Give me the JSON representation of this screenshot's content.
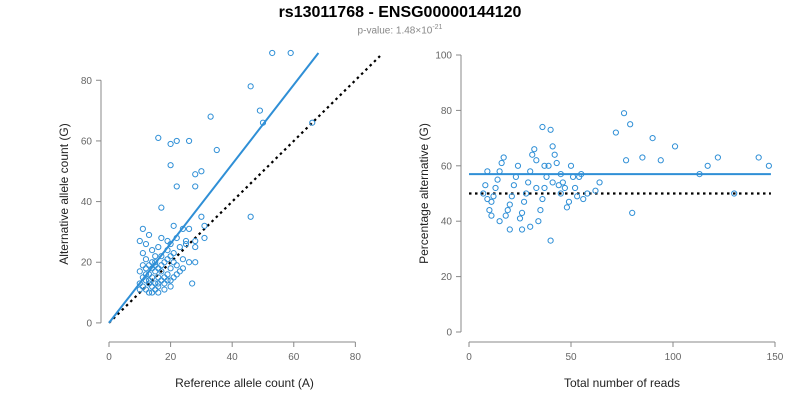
{
  "title": "rs13011768 - ENSG00000144120",
  "subtitle": {
    "prefix": "p-value: 1.48×10",
    "exponent": "-21"
  },
  "colors": {
    "points": "#2f8fd6",
    "fit_line": "#2f8fd6",
    "reference_line": "#000000",
    "axis": "#888888"
  },
  "chart_data": [
    {
      "type": "scatter",
      "id": "left",
      "xlabel": "Reference allele count (A)",
      "ylabel": "Alternative allele count (G)",
      "xlim": [
        0,
        88
      ],
      "ylim": [
        -3,
        88
      ],
      "xticks": [
        0,
        20,
        40,
        60,
        80
      ],
      "yticks": [
        0,
        20,
        40,
        60,
        80
      ],
      "grid": false,
      "fit_line": {
        "style": "solid",
        "x": [
          0,
          68
        ],
        "y": [
          0,
          89
        ]
      },
      "reference_line": {
        "style": "dotted",
        "x": [
          0,
          88
        ],
        "y": [
          0,
          88
        ]
      },
      "points": [
        [
          53,
          89
        ],
        [
          59,
          89
        ],
        [
          33,
          68
        ],
        [
          46,
          78
        ],
        [
          49,
          70
        ],
        [
          50,
          66
        ],
        [
          66,
          66
        ],
        [
          16,
          61
        ],
        [
          26,
          60
        ],
        [
          35,
          57
        ],
        [
          20,
          59
        ],
        [
          22,
          60
        ],
        [
          20,
          52
        ],
        [
          30,
          50
        ],
        [
          28,
          49
        ],
        [
          28,
          45
        ],
        [
          22,
          45
        ],
        [
          17,
          38
        ],
        [
          46,
          35
        ],
        [
          21,
          32
        ],
        [
          31,
          32
        ],
        [
          30,
          35
        ],
        [
          24,
          31
        ],
        [
          26,
          31
        ],
        [
          13,
          29
        ],
        [
          11,
          31
        ],
        [
          22,
          28
        ],
        [
          17,
          28
        ],
        [
          25,
          27
        ],
        [
          28,
          27
        ],
        [
          19,
          27
        ],
        [
          20,
          26
        ],
        [
          10,
          27
        ],
        [
          12,
          26
        ],
        [
          31,
          28
        ],
        [
          16,
          25
        ],
        [
          19,
          24
        ],
        [
          23,
          25
        ],
        [
          28,
          25
        ],
        [
          25,
          26
        ],
        [
          14,
          24
        ],
        [
          11,
          23
        ],
        [
          15,
          22
        ],
        [
          17,
          22
        ],
        [
          20,
          22
        ],
        [
          24,
          21
        ],
        [
          12,
          21
        ],
        [
          18,
          20
        ],
        [
          21,
          20
        ],
        [
          26,
          20
        ],
        [
          11,
          19
        ],
        [
          13,
          19
        ],
        [
          15,
          19
        ],
        [
          22,
          19
        ],
        [
          28,
          20
        ],
        [
          12,
          18
        ],
        [
          14,
          18
        ],
        [
          16,
          18
        ],
        [
          20,
          18
        ],
        [
          10,
          17
        ],
        [
          15,
          17
        ],
        [
          17,
          17
        ],
        [
          19,
          16
        ],
        [
          13,
          16
        ],
        [
          23,
          17
        ],
        [
          11,
          15
        ],
        [
          14,
          15
        ],
        [
          16,
          15
        ],
        [
          21,
          15
        ],
        [
          12,
          14
        ],
        [
          17,
          14
        ],
        [
          19,
          14
        ],
        [
          10,
          13
        ],
        [
          13,
          13
        ],
        [
          15,
          13
        ],
        [
          18,
          13
        ],
        [
          27,
          13
        ],
        [
          11,
          12
        ],
        [
          14,
          12
        ],
        [
          16,
          12
        ],
        [
          20,
          12
        ],
        [
          12,
          11
        ],
        [
          15,
          11
        ],
        [
          18,
          11
        ],
        [
          14,
          10
        ],
        [
          13,
          10
        ],
        [
          16,
          10
        ],
        [
          10,
          11
        ],
        [
          22,
          16
        ],
        [
          24,
          18
        ],
        [
          18,
          15
        ],
        [
          15,
          20
        ],
        [
          13,
          14
        ],
        [
          17,
          19
        ],
        [
          19,
          21
        ],
        [
          21,
          23
        ],
        [
          12,
          16
        ],
        [
          14,
          20
        ],
        [
          16,
          13
        ],
        [
          20,
          14
        ]
      ]
    },
    {
      "type": "scatter",
      "id": "right",
      "xlabel": "Total number of reads",
      "ylabel": "Percentage alternative (G)",
      "xlim": [
        0,
        150
      ],
      "ylim": [
        0,
        100
      ],
      "xticks": [
        0,
        50,
        100,
        150
      ],
      "yticks": [
        0,
        20,
        40,
        60,
        80,
        100
      ],
      "grid": false,
      "fit_line": {
        "style": "solid",
        "x": [
          0,
          148
        ],
        "y": [
          57,
          57
        ]
      },
      "reference_line": {
        "style": "dotted",
        "x": [
          0,
          148
        ],
        "y": [
          50,
          50
        ]
      },
      "points": [
        [
          142,
          63
        ],
        [
          147,
          60
        ],
        [
          130,
          50
        ],
        [
          122,
          63
        ],
        [
          117,
          60
        ],
        [
          113,
          57
        ],
        [
          101,
          67
        ],
        [
          94,
          62
        ],
        [
          90,
          70
        ],
        [
          85,
          63
        ],
        [
          80,
          43
        ],
        [
          79,
          75
        ],
        [
          77,
          62
        ],
        [
          76,
          79
        ],
        [
          72,
          72
        ],
        [
          64,
          54
        ],
        [
          62,
          51
        ],
        [
          58,
          50
        ],
        [
          56,
          48
        ],
        [
          55,
          57
        ],
        [
          53,
          49
        ],
        [
          52,
          52
        ],
        [
          51,
          56
        ],
        [
          49,
          47
        ],
        [
          48,
          45
        ],
        [
          47,
          52
        ],
        [
          46,
          54
        ],
        [
          45,
          57
        ],
        [
          43,
          61
        ],
        [
          42,
          64
        ],
        [
          41,
          67
        ],
        [
          40,
          73
        ],
        [
          39,
          60
        ],
        [
          38,
          56
        ],
        [
          37,
          52
        ],
        [
          36,
          48
        ],
        [
          35,
          44
        ],
        [
          34,
          40
        ],
        [
          33,
          62
        ],
        [
          32,
          66
        ],
        [
          31,
          64
        ],
        [
          30,
          58
        ],
        [
          29,
          54
        ],
        [
          28,
          50
        ],
        [
          27,
          47
        ],
        [
          26,
          43
        ],
        [
          25,
          41
        ],
        [
          24,
          60
        ],
        [
          23,
          56
        ],
        [
          22,
          53
        ],
        [
          21,
          49
        ],
        [
          20,
          46
        ],
        [
          19,
          44
        ],
        [
          18,
          42
        ],
        [
          17,
          63
        ],
        [
          16,
          61
        ],
        [
          15,
          58
        ],
        [
          14,
          55
        ],
        [
          13,
          52
        ],
        [
          12,
          49
        ],
        [
          11,
          47
        ],
        [
          10,
          44
        ],
        [
          9,
          58
        ],
        [
          8,
          53
        ],
        [
          7,
          50
        ],
        [
          40,
          33
        ],
        [
          36,
          74
        ],
        [
          44,
          53
        ],
        [
          30,
          38
        ],
        [
          26,
          37
        ],
        [
          20,
          37
        ],
        [
          15,
          40
        ],
        [
          11,
          42
        ],
        [
          9,
          48
        ],
        [
          33,
          52
        ],
        [
          37,
          60
        ],
        [
          41,
          54
        ],
        [
          45,
          50
        ],
        [
          50,
          60
        ],
        [
          54,
          56
        ]
      ]
    }
  ]
}
